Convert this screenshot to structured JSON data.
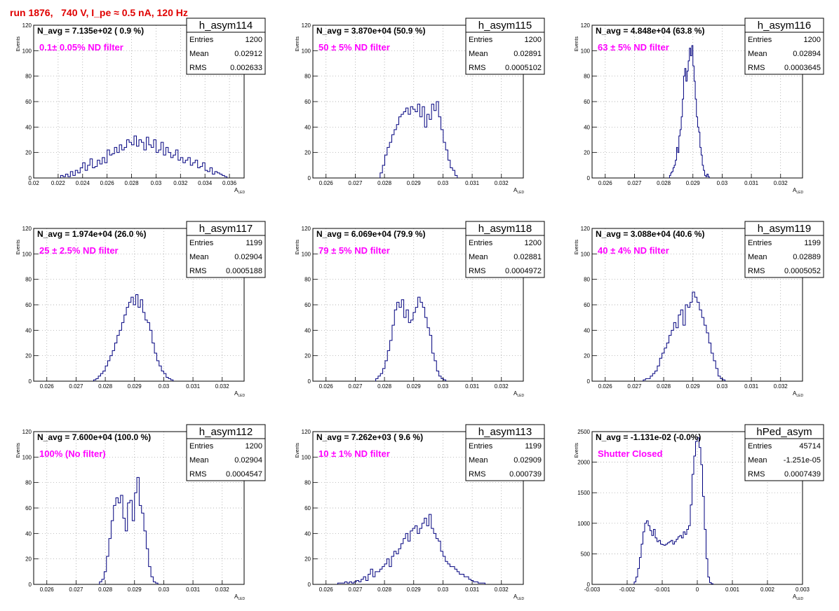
{
  "page_title": "run 1876,   740 V, I_pe ≈ 0.5 nA, 120 Hz",
  "stat_labels": {
    "entries": "Entries",
    "mean": "Mean",
    "rms": "RMS"
  },
  "x_axis_label": "A",
  "x_axis_label_sub": "LED",
  "y_axis_label": "Events",
  "colors": {
    "histogram": "#00007f",
    "annotation": "#ff00ff",
    "page_title": "#e00000",
    "grid": "#9a9a9a"
  },
  "chart_data": [
    {
      "type": "histogram",
      "name": "h_asym114",
      "navg": "N_avg = 7.135e+02 ( 0.9 %)",
      "note": "0.1± 0.05% ND filter",
      "entries": "1200",
      "mean": "0.02912",
      "rms": "0.002633",
      "xlim": [
        0.02,
        0.0372
      ],
      "ylim": [
        0,
        120
      ],
      "xticks": [
        0.02,
        0.022,
        0.024,
        0.026,
        0.028,
        0.03,
        0.032,
        0.034,
        0.036
      ],
      "xtick_labels": [
        "0.02",
        "0.022",
        "0.024",
        "0.026",
        "0.028",
        "0.03",
        "0.032",
        "0.034",
        "0.036"
      ],
      "yticks": [
        0,
        20,
        40,
        60,
        80,
        100,
        120
      ],
      "ytick_labels": [
        "0",
        "20",
        "40",
        "60",
        "80",
        "100",
        "120"
      ],
      "bin_start": 0.0222,
      "bin_width": 0.0002,
      "values": [
        2,
        1,
        3,
        1,
        5,
        2,
        6,
        4,
        8,
        12,
        6,
        10,
        15,
        8,
        9,
        14,
        11,
        16,
        12,
        22,
        18,
        19,
        24,
        20,
        26,
        22,
        24,
        30,
        28,
        26,
        33,
        25,
        30,
        28,
        22,
        32,
        26,
        24,
        30,
        20,
        22,
        28,
        18,
        24,
        20,
        16,
        18,
        22,
        14,
        16,
        12,
        14,
        16,
        10,
        12,
        14,
        8,
        9,
        12,
        6,
        5,
        8,
        3,
        5,
        4,
        3,
        2,
        1
      ]
    },
    {
      "type": "histogram",
      "name": "h_asym115",
      "navg": "N_avg = 3.870e+04 (50.9 %)",
      "note": "50 ± 5% ND filter",
      "entries": "1200",
      "mean": "0.02891",
      "rms": "0.0005102",
      "xlim": [
        0.02555,
        0.03275
      ],
      "ylim": [
        0,
        120
      ],
      "xticks": [
        0.026,
        0.027,
        0.028,
        0.029,
        0.03,
        0.031,
        0.032
      ],
      "xtick_labels": [
        "0.026",
        "0.027",
        "0.028",
        "0.029",
        "0.03",
        "0.031",
        "0.032"
      ],
      "yticks": [
        0,
        20,
        40,
        60,
        80,
        100,
        120
      ],
      "ytick_labels": [
        "0",
        "20",
        "40",
        "60",
        "80",
        "100",
        "120"
      ],
      "bin_start": 0.02785,
      "bin_width": 8e-05,
      "values": [
        4,
        10,
        18,
        24,
        28,
        34,
        38,
        42,
        48,
        50,
        52,
        55,
        50,
        56,
        54,
        52,
        58,
        48,
        56,
        40,
        50,
        46,
        58,
        53,
        60,
        48,
        38,
        28,
        22,
        14,
        8,
        6,
        2
      ]
    },
    {
      "type": "histogram",
      "name": "h_asym116",
      "navg": "N_avg = 4.848e+04 (63.8 %)",
      "note": "63 ± 5% ND filter",
      "entries": "1200",
      "mean": "0.02894",
      "rms": "0.0003645",
      "xlim": [
        0.02555,
        0.03275
      ],
      "ylim": [
        0,
        120
      ],
      "xticks": [
        0.026,
        0.027,
        0.028,
        0.029,
        0.03,
        0.031,
        0.032
      ],
      "xtick_labels": [
        "0.026",
        "0.027",
        "0.028",
        "0.029",
        "0.03",
        "0.031",
        "0.032"
      ],
      "yticks": [
        0,
        20,
        40,
        60,
        80,
        100,
        120
      ],
      "ytick_labels": [
        "0",
        "20",
        "40",
        "60",
        "80",
        "100",
        "120"
      ],
      "bin_start": 0.0282,
      "bin_width": 4e-05,
      "values": [
        2,
        4,
        5,
        8,
        10,
        14,
        24,
        20,
        33,
        38,
        48,
        62,
        80,
        86,
        76,
        84,
        92,
        102,
        96,
        104,
        88,
        76,
        62,
        48,
        40,
        36,
        24,
        18,
        10,
        6,
        2,
        1,
        3,
        1
      ]
    },
    {
      "type": "histogram",
      "name": "h_asym117",
      "navg": "N_avg = 1.974e+04 (26.0 %)",
      "note": "25 ± 2.5% ND filter",
      "entries": "1199",
      "mean": "0.02904",
      "rms": "0.0005188",
      "xlim": [
        0.02555,
        0.03275
      ],
      "ylim": [
        0,
        120
      ],
      "xticks": [
        0.026,
        0.027,
        0.028,
        0.029,
        0.03,
        0.031,
        0.032
      ],
      "xtick_labels": [
        "0.026",
        "0.027",
        "0.028",
        "0.029",
        "0.03",
        "0.031",
        "0.032"
      ],
      "yticks": [
        0,
        20,
        40,
        60,
        80,
        100,
        120
      ],
      "ytick_labels": [
        "0",
        "20",
        "40",
        "60",
        "80",
        "100",
        "120"
      ],
      "bin_start": 0.0276,
      "bin_width": 8e-05,
      "values": [
        1,
        2,
        4,
        6,
        8,
        12,
        16,
        20,
        24,
        30,
        36,
        40,
        46,
        52,
        58,
        62,
        66,
        60,
        68,
        58,
        64,
        54,
        48,
        46,
        40,
        30,
        22,
        16,
        12,
        8,
        6,
        3,
        2,
        1
      ]
    },
    {
      "type": "histogram",
      "name": "h_asym118",
      "navg": "N_avg = 6.069e+04 (79.9 %)",
      "note": "79 ± 5% ND filter",
      "entries": "1200",
      "mean": "0.02881",
      "rms": "0.0004972",
      "xlim": [
        0.02555,
        0.03275
      ],
      "ylim": [
        0,
        120
      ],
      "xticks": [
        0.026,
        0.027,
        0.028,
        0.029,
        0.03,
        0.031,
        0.032
      ],
      "xtick_labels": [
        "0.026",
        "0.027",
        "0.028",
        "0.029",
        "0.03",
        "0.031",
        "0.032"
      ],
      "yticks": [
        0,
        20,
        40,
        60,
        80,
        100,
        120
      ],
      "ytick_labels": [
        "0",
        "20",
        "40",
        "60",
        "80",
        "100",
        "120"
      ],
      "bin_start": 0.0277,
      "bin_width": 8e-05,
      "values": [
        2,
        4,
        6,
        10,
        16,
        24,
        32,
        44,
        56,
        62,
        58,
        64,
        50,
        56,
        46,
        48,
        54,
        58,
        66,
        62,
        58,
        50,
        42,
        36,
        22,
        16,
        8,
        4,
        2,
        1
      ]
    },
    {
      "type": "histogram",
      "name": "h_asym119",
      "navg": "N_avg = 3.088e+04 (40.6 %)",
      "note": "40 ± 4% ND filter",
      "entries": "1199",
      "mean": "0.02889",
      "rms": "0.0005052",
      "xlim": [
        0.02555,
        0.03275
      ],
      "ylim": [
        0,
        120
      ],
      "xticks": [
        0.026,
        0.027,
        0.028,
        0.029,
        0.03,
        0.031,
        0.032
      ],
      "xtick_labels": [
        "0.026",
        "0.027",
        "0.028",
        "0.029",
        "0.03",
        "0.031",
        "0.032"
      ],
      "yticks": [
        0,
        20,
        40,
        60,
        80,
        100,
        120
      ],
      "ytick_labels": [
        "0",
        "20",
        "40",
        "60",
        "80",
        "100",
        "120"
      ],
      "bin_start": 0.0273,
      "bin_width": 8e-05,
      "values": [
        1,
        2,
        2,
        4,
        6,
        8,
        12,
        18,
        22,
        26,
        30,
        36,
        40,
        46,
        42,
        52,
        56,
        44,
        60,
        58,
        62,
        70,
        66,
        62,
        56,
        50,
        44,
        38,
        30,
        22,
        16,
        10,
        4,
        2,
        1
      ]
    },
    {
      "type": "histogram",
      "name": "h_asym112",
      "navg": "N_avg = 7.600e+04 (100.0 %)",
      "note": "100% (No filter)",
      "entries": "1200",
      "mean": "0.02904",
      "rms": "0.0004547",
      "xlim": [
        0.02555,
        0.03275
      ],
      "ylim": [
        0,
        120
      ],
      "xticks": [
        0.026,
        0.027,
        0.028,
        0.029,
        0.03,
        0.031,
        0.032
      ],
      "xtick_labels": [
        "0.026",
        "0.027",
        "0.028",
        "0.029",
        "0.03",
        "0.031",
        "0.032"
      ],
      "yticks": [
        0,
        20,
        40,
        60,
        80,
        100,
        120
      ],
      "ytick_labels": [
        "0",
        "20",
        "40",
        "60",
        "80",
        "100",
        "120"
      ],
      "bin_start": 0.0278,
      "bin_width": 8e-05,
      "values": [
        2,
        4,
        10,
        22,
        36,
        50,
        62,
        68,
        64,
        70,
        52,
        42,
        64,
        66,
        50,
        72,
        84,
        62,
        56,
        42,
        28,
        14,
        6,
        2,
        1
      ]
    },
    {
      "type": "histogram",
      "name": "h_asym113",
      "navg": "N_avg = 7.262e+03 ( 9.6 %)",
      "note": "10 ± 1% ND filter",
      "entries": "1199",
      "mean": "0.02909",
      "rms": "0.000739",
      "xlim": [
        0.02555,
        0.03275
      ],
      "ylim": [
        0,
        120
      ],
      "xticks": [
        0.026,
        0.027,
        0.028,
        0.029,
        0.03,
        0.031,
        0.032
      ],
      "xtick_labels": [
        "0.026",
        "0.027",
        "0.028",
        "0.029",
        "0.03",
        "0.031",
        "0.032"
      ],
      "yticks": [
        0,
        20,
        40,
        60,
        80,
        100,
        120
      ],
      "ytick_labels": [
        "0",
        "20",
        "40",
        "60",
        "80",
        "100",
        "120"
      ],
      "bin_start": 0.0264,
      "bin_width": 8e-05,
      "values": [
        1,
        1,
        1,
        2,
        1,
        2,
        1,
        2,
        3,
        2,
        4,
        6,
        3,
        8,
        12,
        6,
        10,
        10,
        12,
        14,
        16,
        20,
        14,
        22,
        26,
        24,
        28,
        32,
        36,
        40,
        34,
        42,
        44,
        46,
        40,
        44,
        48,
        52,
        46,
        55,
        44,
        40,
        36,
        34,
        26,
        22,
        18,
        16,
        14,
        14,
        12,
        10,
        8,
        8,
        6,
        6,
        4,
        3,
        2,
        2,
        1,
        1,
        1
      ]
    },
    {
      "type": "histogram",
      "name": "hPed_asym",
      "navg": "N_avg = -1.131e-02 (-0.0%)",
      "note": "Shutter Closed",
      "entries": "45714",
      "mean": "-1.251e-05",
      "rms": "0.0007439",
      "xlim": [
        -0.003,
        0.003
      ],
      "ylim": [
        0,
        2500
      ],
      "xticks": [
        -0.003,
        -0.002,
        -0.001,
        0,
        0.001,
        0.002,
        0.003
      ],
      "xtick_labels": [
        "-0.003",
        "-0.002",
        "-0.001",
        "0",
        "0.001",
        "0.002",
        "0.003"
      ],
      "yticks": [
        0,
        500,
        1000,
        1500,
        2000,
        2500
      ],
      "ytick_labels": [
        "0",
        "500",
        "1000",
        "1500",
        "2000",
        "2500"
      ],
      "bin_start": -0.0018,
      "bin_width": 5e-05,
      "values": [
        40,
        120,
        260,
        440,
        660,
        860,
        1000,
        1040,
        960,
        880,
        800,
        900,
        760,
        700,
        720,
        660,
        650,
        640,
        660,
        680,
        700,
        720,
        660,
        700,
        740,
        780,
        800,
        760,
        860,
        820,
        900,
        960,
        1300,
        1800,
        2100,
        2340,
        2400,
        2240,
        1960,
        1440,
        900,
        420,
        120,
        30,
        10
      ]
    }
  ]
}
